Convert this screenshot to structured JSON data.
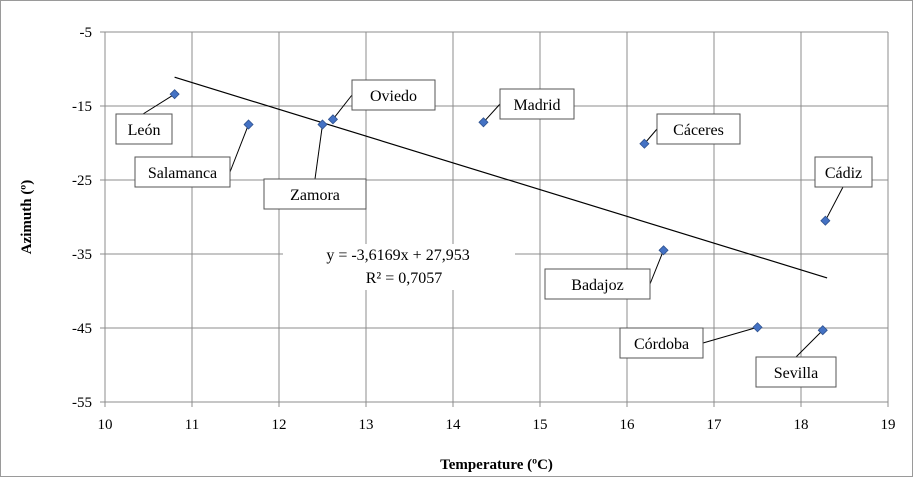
{
  "chart_data": {
    "type": "scatter",
    "title": "",
    "xlabel": "Temperature (ºC)",
    "ylabel": "Azimuth (º)",
    "xlim": [
      10,
      19
    ],
    "ylim": [
      -55,
      -5
    ],
    "xticks": [
      "10",
      "11",
      "12",
      "13",
      "14",
      "15",
      "16",
      "17",
      "18",
      "19"
    ],
    "yticks": [
      "-5",
      "-15",
      "-25",
      "-35",
      "-45",
      "-55"
    ],
    "grid": true,
    "marker_color": "#4472c4",
    "points": [
      {
        "label": "León",
        "x": 10.8,
        "y": -13.4
      },
      {
        "label": "Salamanca",
        "x": 11.65,
        "y": -17.5
      },
      {
        "label": "Zamora",
        "x": 12.5,
        "y": -17.5
      },
      {
        "label": "Oviedo",
        "x": 12.62,
        "y": -16.8
      },
      {
        "label": "Madrid",
        "x": 14.35,
        "y": -17.2
      },
      {
        "label": "Cáceres",
        "x": 16.2,
        "y": -20.1
      },
      {
        "label": "Cádiz",
        "x": 18.28,
        "y": -30.5
      },
      {
        "label": "Badajoz",
        "x": 16.42,
        "y": -34.5
      },
      {
        "label": "Córdoba",
        "x": 17.5,
        "y": -44.9
      },
      {
        "label": "Sevilla",
        "x": 18.25,
        "y": -45.3
      }
    ],
    "trendline": {
      "type": "linear",
      "slope": -3.6169,
      "intercept": 27.953,
      "x_range": [
        10.8,
        18.3
      ],
      "equation": "y = -3,6169x + 27,953",
      "r_squared": "R² = 0,7057"
    }
  }
}
